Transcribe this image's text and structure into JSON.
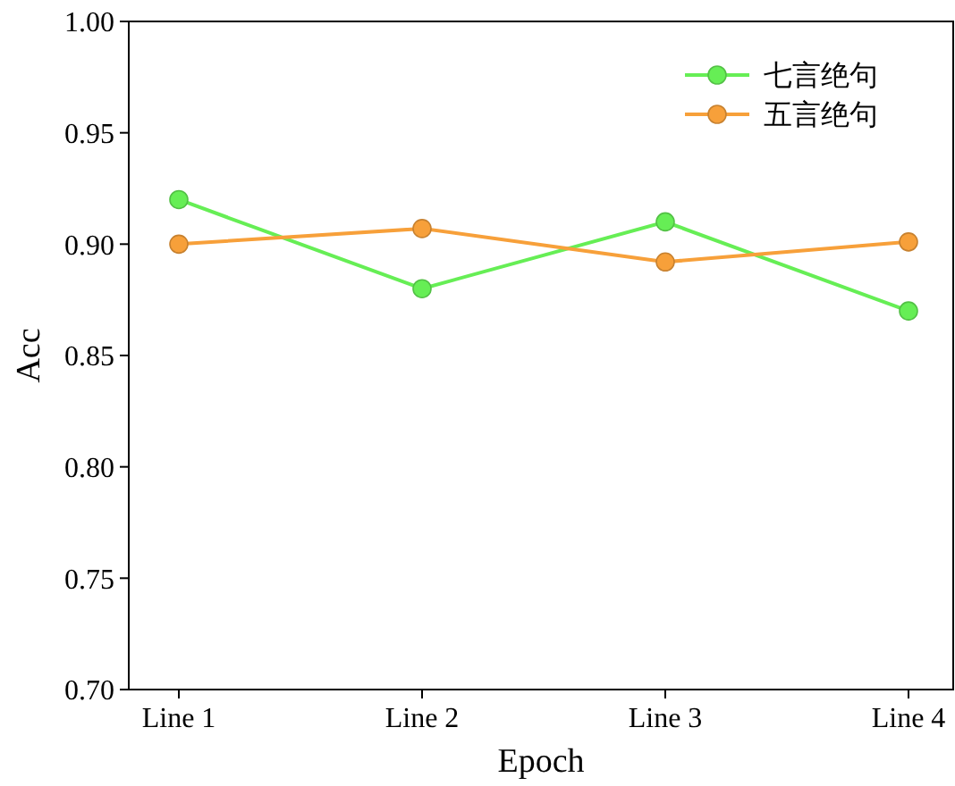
{
  "chart_data": {
    "type": "line",
    "xlabel": "Epoch",
    "ylabel": "Acc",
    "categories": [
      "Line 1",
      "Line 2",
      "Line 3",
      "Line 4"
    ],
    "series": [
      {
        "name": "七言绝句",
        "color": "#66ee55",
        "values": [
          0.92,
          0.88,
          0.91,
          0.87
        ]
      },
      {
        "name": "五言绝句",
        "color": "#f7a03a",
        "values": [
          0.9,
          0.907,
          0.892,
          0.901
        ]
      }
    ],
    "ylim": [
      0.7,
      1.0
    ],
    "yticks": [
      {
        "value": 0.7,
        "label": "0.70"
      },
      {
        "value": 0.75,
        "label": "0.75"
      },
      {
        "value": 0.8,
        "label": "0.80"
      },
      {
        "value": 0.85,
        "label": "0.85"
      },
      {
        "value": 0.9,
        "label": "0.90"
      },
      {
        "value": 0.95,
        "label": "0.95"
      },
      {
        "value": 1.0,
        "label": "1.00"
      }
    ],
    "grid": false,
    "legend": "top right",
    "marker": "circle",
    "line_style": "solid"
  }
}
